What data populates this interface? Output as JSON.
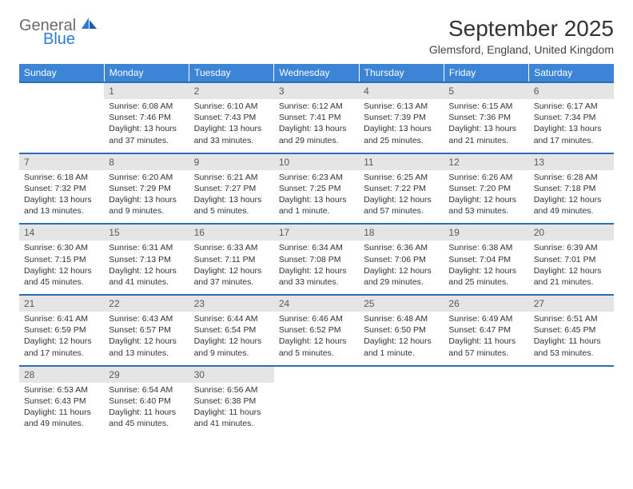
{
  "logo": {
    "word1": "General",
    "word2": "Blue",
    "color_gray": "#6a6a6a",
    "color_blue": "#2f7bd9"
  },
  "title": "September 2025",
  "location": "Glemsford, England, United Kingdom",
  "header_bg": "#3b84d6",
  "daynum_bg": "#e5e5e5",
  "rule_color": "#2f6db3",
  "weekdays": [
    "Sunday",
    "Monday",
    "Tuesday",
    "Wednesday",
    "Thursday",
    "Friday",
    "Saturday"
  ],
  "weeks": [
    {
      "nums": [
        "",
        "1",
        "2",
        "3",
        "4",
        "5",
        "6"
      ],
      "cells": [
        [],
        [
          "Sunrise: 6:08 AM",
          "Sunset: 7:46 PM",
          "Daylight: 13 hours",
          "and 37 minutes."
        ],
        [
          "Sunrise: 6:10 AM",
          "Sunset: 7:43 PM",
          "Daylight: 13 hours",
          "and 33 minutes."
        ],
        [
          "Sunrise: 6:12 AM",
          "Sunset: 7:41 PM",
          "Daylight: 13 hours",
          "and 29 minutes."
        ],
        [
          "Sunrise: 6:13 AM",
          "Sunset: 7:39 PM",
          "Daylight: 13 hours",
          "and 25 minutes."
        ],
        [
          "Sunrise: 6:15 AM",
          "Sunset: 7:36 PM",
          "Daylight: 13 hours",
          "and 21 minutes."
        ],
        [
          "Sunrise: 6:17 AM",
          "Sunset: 7:34 PM",
          "Daylight: 13 hours",
          "and 17 minutes."
        ]
      ]
    },
    {
      "nums": [
        "7",
        "8",
        "9",
        "10",
        "11",
        "12",
        "13"
      ],
      "cells": [
        [
          "Sunrise: 6:18 AM",
          "Sunset: 7:32 PM",
          "Daylight: 13 hours",
          "and 13 minutes."
        ],
        [
          "Sunrise: 6:20 AM",
          "Sunset: 7:29 PM",
          "Daylight: 13 hours",
          "and 9 minutes."
        ],
        [
          "Sunrise: 6:21 AM",
          "Sunset: 7:27 PM",
          "Daylight: 13 hours",
          "and 5 minutes."
        ],
        [
          "Sunrise: 6:23 AM",
          "Sunset: 7:25 PM",
          "Daylight: 13 hours",
          "and 1 minute."
        ],
        [
          "Sunrise: 6:25 AM",
          "Sunset: 7:22 PM",
          "Daylight: 12 hours",
          "and 57 minutes."
        ],
        [
          "Sunrise: 6:26 AM",
          "Sunset: 7:20 PM",
          "Daylight: 12 hours",
          "and 53 minutes."
        ],
        [
          "Sunrise: 6:28 AM",
          "Sunset: 7:18 PM",
          "Daylight: 12 hours",
          "and 49 minutes."
        ]
      ]
    },
    {
      "nums": [
        "14",
        "15",
        "16",
        "17",
        "18",
        "19",
        "20"
      ],
      "cells": [
        [
          "Sunrise: 6:30 AM",
          "Sunset: 7:15 PM",
          "Daylight: 12 hours",
          "and 45 minutes."
        ],
        [
          "Sunrise: 6:31 AM",
          "Sunset: 7:13 PM",
          "Daylight: 12 hours",
          "and 41 minutes."
        ],
        [
          "Sunrise: 6:33 AM",
          "Sunset: 7:11 PM",
          "Daylight: 12 hours",
          "and 37 minutes."
        ],
        [
          "Sunrise: 6:34 AM",
          "Sunset: 7:08 PM",
          "Daylight: 12 hours",
          "and 33 minutes."
        ],
        [
          "Sunrise: 6:36 AM",
          "Sunset: 7:06 PM",
          "Daylight: 12 hours",
          "and 29 minutes."
        ],
        [
          "Sunrise: 6:38 AM",
          "Sunset: 7:04 PM",
          "Daylight: 12 hours",
          "and 25 minutes."
        ],
        [
          "Sunrise: 6:39 AM",
          "Sunset: 7:01 PM",
          "Daylight: 12 hours",
          "and 21 minutes."
        ]
      ]
    },
    {
      "nums": [
        "21",
        "22",
        "23",
        "24",
        "25",
        "26",
        "27"
      ],
      "cells": [
        [
          "Sunrise: 6:41 AM",
          "Sunset: 6:59 PM",
          "Daylight: 12 hours",
          "and 17 minutes."
        ],
        [
          "Sunrise: 6:43 AM",
          "Sunset: 6:57 PM",
          "Daylight: 12 hours",
          "and 13 minutes."
        ],
        [
          "Sunrise: 6:44 AM",
          "Sunset: 6:54 PM",
          "Daylight: 12 hours",
          "and 9 minutes."
        ],
        [
          "Sunrise: 6:46 AM",
          "Sunset: 6:52 PM",
          "Daylight: 12 hours",
          "and 5 minutes."
        ],
        [
          "Sunrise: 6:48 AM",
          "Sunset: 6:50 PM",
          "Daylight: 12 hours",
          "and 1 minute."
        ],
        [
          "Sunrise: 6:49 AM",
          "Sunset: 6:47 PM",
          "Daylight: 11 hours",
          "and 57 minutes."
        ],
        [
          "Sunrise: 6:51 AM",
          "Sunset: 6:45 PM",
          "Daylight: 11 hours",
          "and 53 minutes."
        ]
      ]
    },
    {
      "nums": [
        "28",
        "29",
        "30",
        "",
        "",
        "",
        ""
      ],
      "cells": [
        [
          "Sunrise: 6:53 AM",
          "Sunset: 6:43 PM",
          "Daylight: 11 hours",
          "and 49 minutes."
        ],
        [
          "Sunrise: 6:54 AM",
          "Sunset: 6:40 PM",
          "Daylight: 11 hours",
          "and 45 minutes."
        ],
        [
          "Sunrise: 6:56 AM",
          "Sunset: 6:38 PM",
          "Daylight: 11 hours",
          "and 41 minutes."
        ],
        [],
        [],
        [],
        []
      ]
    }
  ]
}
